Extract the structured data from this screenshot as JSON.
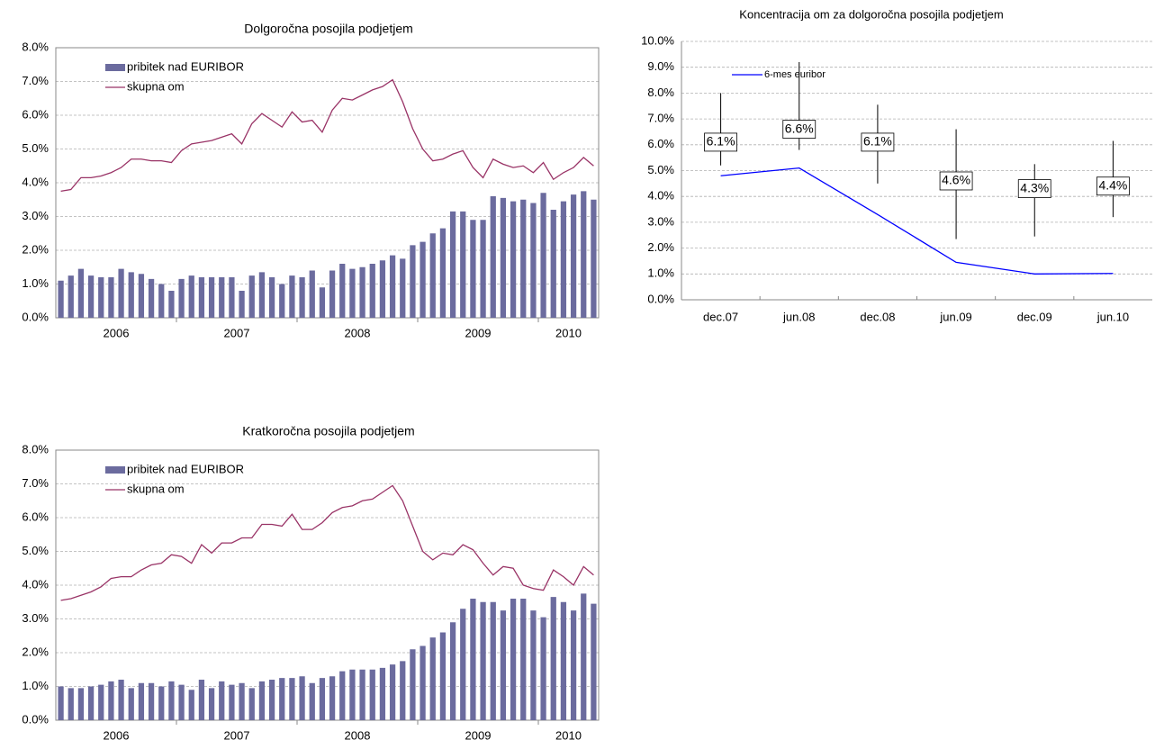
{
  "chart_data": [
    {
      "type": "bar",
      "title": "Dolgoročna posojila podjetjem",
      "categories": [
        null,
        null,
        null,
        null,
        null,
        "2006",
        null,
        null,
        null,
        null,
        null,
        null,
        null,
        null,
        null,
        null,
        null,
        "2007",
        null,
        null,
        null,
        null,
        null,
        null,
        null,
        null,
        null,
        null,
        null,
        "2008",
        null,
        null,
        null,
        null,
        null,
        null,
        null,
        null,
        null,
        null,
        null,
        "2009",
        null,
        null,
        null,
        null,
        null,
        null,
        null,
        null,
        "2010",
        null,
        null,
        null
      ],
      "series": [
        {
          "name": "pribitek nad EURIBOR",
          "type": "bar",
          "color": "#6b6b9e",
          "values": [
            1.1,
            1.25,
            1.45,
            1.25,
            1.2,
            1.2,
            1.45,
            1.35,
            1.3,
            1.15,
            1.0,
            0.8,
            1.15,
            1.25,
            1.2,
            1.2,
            1.2,
            1.2,
            0.8,
            1.25,
            1.35,
            1.2,
            1.0,
            1.25,
            1.2,
            1.4,
            0.9,
            1.4,
            1.6,
            1.45,
            1.5,
            1.6,
            1.7,
            1.85,
            1.75,
            2.15,
            2.25,
            2.5,
            2.65,
            3.15,
            3.15,
            2.9,
            2.9,
            3.6,
            3.55,
            3.45,
            3.5,
            3.4,
            3.7,
            3.2,
            3.45,
            3.65,
            3.75,
            3.5
          ]
        },
        {
          "name": "skupna om",
          "type": "line",
          "color": "#993366",
          "values": [
            3.75,
            3.8,
            4.15,
            4.15,
            4.2,
            4.3,
            4.45,
            4.7,
            4.7,
            4.65,
            4.65,
            4.6,
            4.95,
            5.15,
            5.2,
            5.25,
            5.35,
            5.45,
            5.15,
            5.75,
            6.05,
            5.85,
            5.65,
            6.1,
            5.8,
            5.85,
            5.5,
            6.15,
            6.5,
            6.45,
            6.6,
            6.75,
            6.85,
            7.05,
            6.4,
            5.6,
            5.0,
            4.65,
            4.7,
            4.85,
            4.95,
            4.45,
            4.15,
            4.7,
            4.55,
            4.45,
            4.5,
            4.3,
            4.6,
            4.1,
            4.3,
            4.45,
            4.75,
            4.5
          ]
        }
      ],
      "ylim": [
        0,
        8
      ],
      "yticks": [
        {
          "value": 0,
          "label": "0.0%"
        },
        {
          "value": 1,
          "label": "1.0%"
        },
        {
          "value": 2,
          "label": "2.0%"
        },
        {
          "value": 3,
          "label": "3.0%"
        },
        {
          "value": 4,
          "label": "4.0%"
        },
        {
          "value": 5,
          "label": "5.0%"
        },
        {
          "value": 6,
          "label": "6.0%"
        },
        {
          "value": 7,
          "label": "7.0%"
        },
        {
          "value": 8,
          "label": "8.0%"
        }
      ],
      "grid": true,
      "legend": "upper left"
    },
    {
      "type": "hilo",
      "title": "Koncentracija om za dolgoročna posojila podjetjem",
      "categories": [
        "dec.07",
        "jun.08",
        "dec.08",
        "jun.09",
        "dec.09",
        "jun.10"
      ],
      "high": [
        8.0,
        9.2,
        7.55,
        6.6,
        5.25,
        6.15
      ],
      "low": [
        5.2,
        5.8,
        4.5,
        2.35,
        2.45,
        3.2
      ],
      "values": [
        6.1,
        6.6,
        6.1,
        4.6,
        4.3,
        4.4
      ],
      "value_labels": [
        "6.1%",
        "6.6%",
        "6.1%",
        "4.6%",
        "4.3%",
        "4.4%"
      ],
      "series": [
        {
          "name": "6-mes euribor",
          "type": "line",
          "color": "#0000ff",
          "values": [
            4.8,
            5.1,
            3.3,
            1.45,
            1.0,
            1.02
          ]
        }
      ],
      "ylim": [
        0,
        10
      ],
      "yticks": [
        {
          "value": 0,
          "label": "0.0%"
        },
        {
          "value": 1,
          "label": "1.0%"
        },
        {
          "value": 2,
          "label": "2.0%"
        },
        {
          "value": 3,
          "label": "3.0%"
        },
        {
          "value": 4,
          "label": "4.0%"
        },
        {
          "value": 5,
          "label": "5.0%"
        },
        {
          "value": 6,
          "label": "6.0%"
        },
        {
          "value": 7,
          "label": "7.0%"
        },
        {
          "value": 8,
          "label": "8.0%"
        },
        {
          "value": 9,
          "label": "9.0%"
        },
        {
          "value": 10,
          "label": "10.0%"
        }
      ],
      "grid": true,
      "legend": "upper left"
    },
    {
      "type": "bar",
      "title": "Kratkoročna posojila podjetjem",
      "categories": [
        null,
        null,
        null,
        null,
        null,
        "2006",
        null,
        null,
        null,
        null,
        null,
        null,
        null,
        null,
        null,
        null,
        null,
        "2007",
        null,
        null,
        null,
        null,
        null,
        null,
        null,
        null,
        null,
        null,
        null,
        "2008",
        null,
        null,
        null,
        null,
        null,
        null,
        null,
        null,
        null,
        null,
        null,
        "2009",
        null,
        null,
        null,
        null,
        null,
        null,
        null,
        null,
        "2010",
        null,
        null,
        null
      ],
      "series": [
        {
          "name": "pribitek nad EURIBOR",
          "type": "bar",
          "color": "#6b6b9e",
          "values": [
            1.0,
            0.95,
            0.95,
            1.0,
            1.05,
            1.15,
            1.2,
            0.95,
            1.1,
            1.1,
            1.0,
            1.15,
            1.05,
            0.9,
            1.2,
            0.95,
            1.15,
            1.05,
            1.1,
            0.95,
            1.15,
            1.2,
            1.25,
            1.25,
            1.3,
            1.1,
            1.25,
            1.3,
            1.45,
            1.5,
            1.5,
            1.5,
            1.55,
            1.65,
            1.75,
            2.1,
            2.2,
            2.45,
            2.6,
            2.9,
            3.3,
            3.6,
            3.5,
            3.5,
            3.25,
            3.6,
            3.6,
            3.25,
            3.05,
            3.65,
            3.5,
            3.25,
            3.75,
            3.45
          ]
        },
        {
          "name": "skupna om",
          "type": "line",
          "color": "#993366",
          "values": [
            3.55,
            3.6,
            3.7,
            3.8,
            3.95,
            4.2,
            4.25,
            4.25,
            4.45,
            4.6,
            4.65,
            4.9,
            4.85,
            4.65,
            5.2,
            4.95,
            5.25,
            5.25,
            5.4,
            5.4,
            5.8,
            5.8,
            5.75,
            6.1,
            5.65,
            5.65,
            5.85,
            6.15,
            6.3,
            6.35,
            6.5,
            6.55,
            6.75,
            6.95,
            6.5,
            5.75,
            5.0,
            4.75,
            4.95,
            4.9,
            5.2,
            5.05,
            4.65,
            4.3,
            4.55,
            4.5,
            4.0,
            3.9,
            3.85,
            4.45,
            4.25,
            4.0,
            4.55,
            4.3
          ]
        }
      ],
      "ylim": [
        0,
        8
      ],
      "yticks": [
        {
          "value": 0,
          "label": "0.0%"
        },
        {
          "value": 1,
          "label": "1.0%"
        },
        {
          "value": 2,
          "label": "2.0%"
        },
        {
          "value": 3,
          "label": "3.0%"
        },
        {
          "value": 4,
          "label": "4.0%"
        },
        {
          "value": 5,
          "label": "5.0%"
        },
        {
          "value": 6,
          "label": "6.0%"
        },
        {
          "value": 7,
          "label": "7.0%"
        },
        {
          "value": 8,
          "label": "8.0%"
        }
      ],
      "grid": true,
      "legend": "upper left"
    }
  ]
}
